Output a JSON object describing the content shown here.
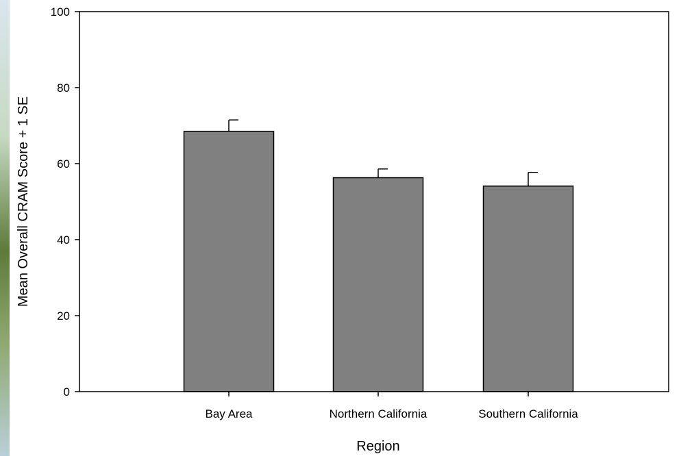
{
  "chart_data": {
    "type": "bar",
    "title": "",
    "xlabel": "Region",
    "ylabel": "Mean Overall CRAM Score + 1 SE",
    "categories": [
      "Bay Area",
      "Northern California",
      "Southern California"
    ],
    "values": [
      68.5,
      56.3,
      54.1
    ],
    "error_plus": [
      3.0,
      2.3,
      3.6
    ],
    "ylim": [
      0,
      100
    ],
    "yticks": [
      0,
      20,
      40,
      60,
      80,
      100
    ],
    "ytick_labels": [
      "0",
      "20",
      "40",
      "60",
      "80",
      "100"
    ],
    "grid": false,
    "legend": "none",
    "colors": {
      "bar_fill": "#808080",
      "bar_stroke": "#000000",
      "axis": "#000000",
      "background": "#ffffff"
    }
  }
}
